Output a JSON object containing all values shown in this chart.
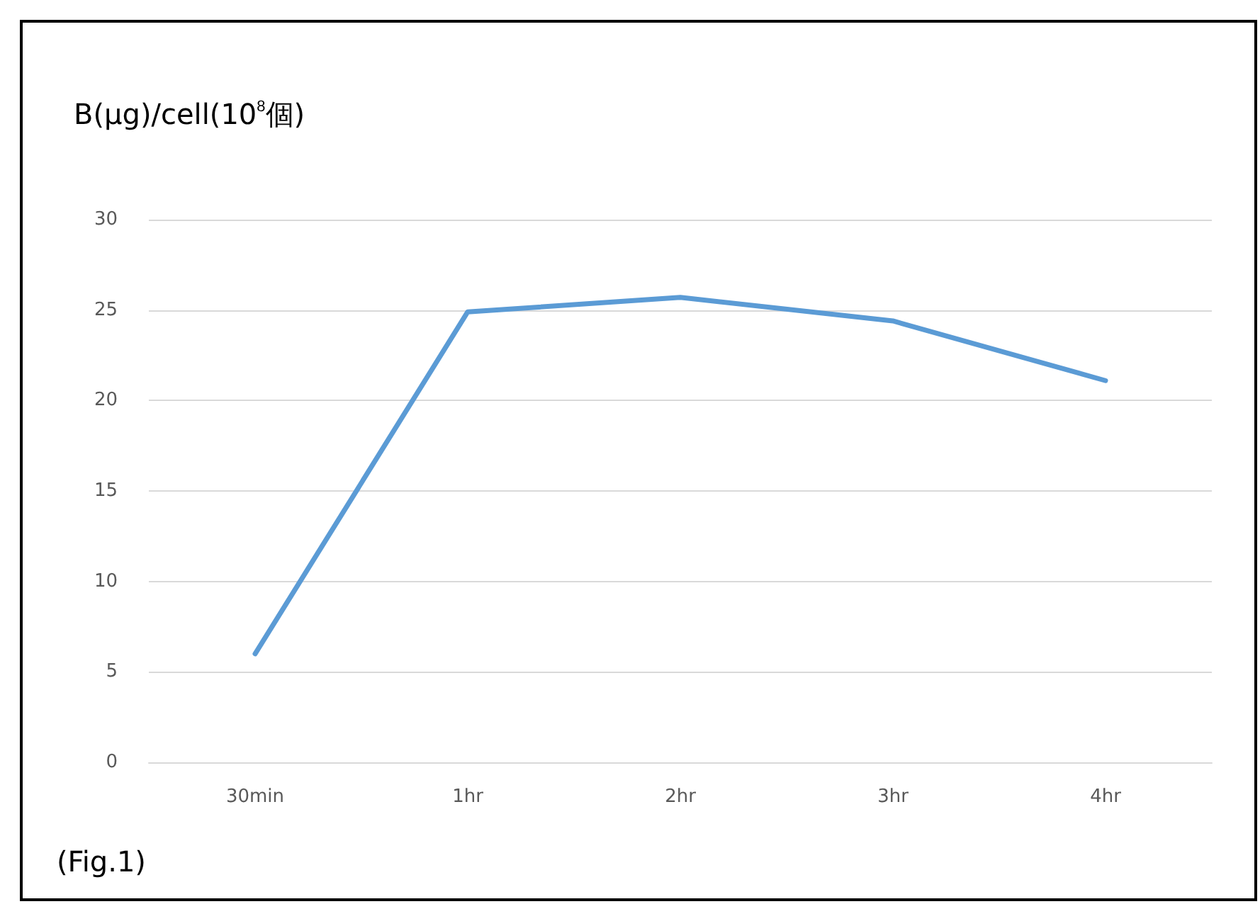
{
  "chart_data": {
    "type": "line",
    "ylabel": "B(μg)/cell(10$^{8}$個)",
    "annotations": [
      "(Fig.1)"
    ],
    "categories": [
      "30min",
      "1hr",
      "2hr",
      "3hr",
      "4hr"
    ],
    "series": [
      {
        "color": "#5b9bd5",
        "values": [
          6,
          24.9,
          25.7,
          24.4,
          21.1
        ]
      }
    ],
    "ylim": [
      0,
      30
    ],
    "yticks": [
      0,
      5,
      10,
      15,
      20,
      25,
      30
    ],
    "grid": "y",
    "marker": "none",
    "line_style": "solid"
  }
}
